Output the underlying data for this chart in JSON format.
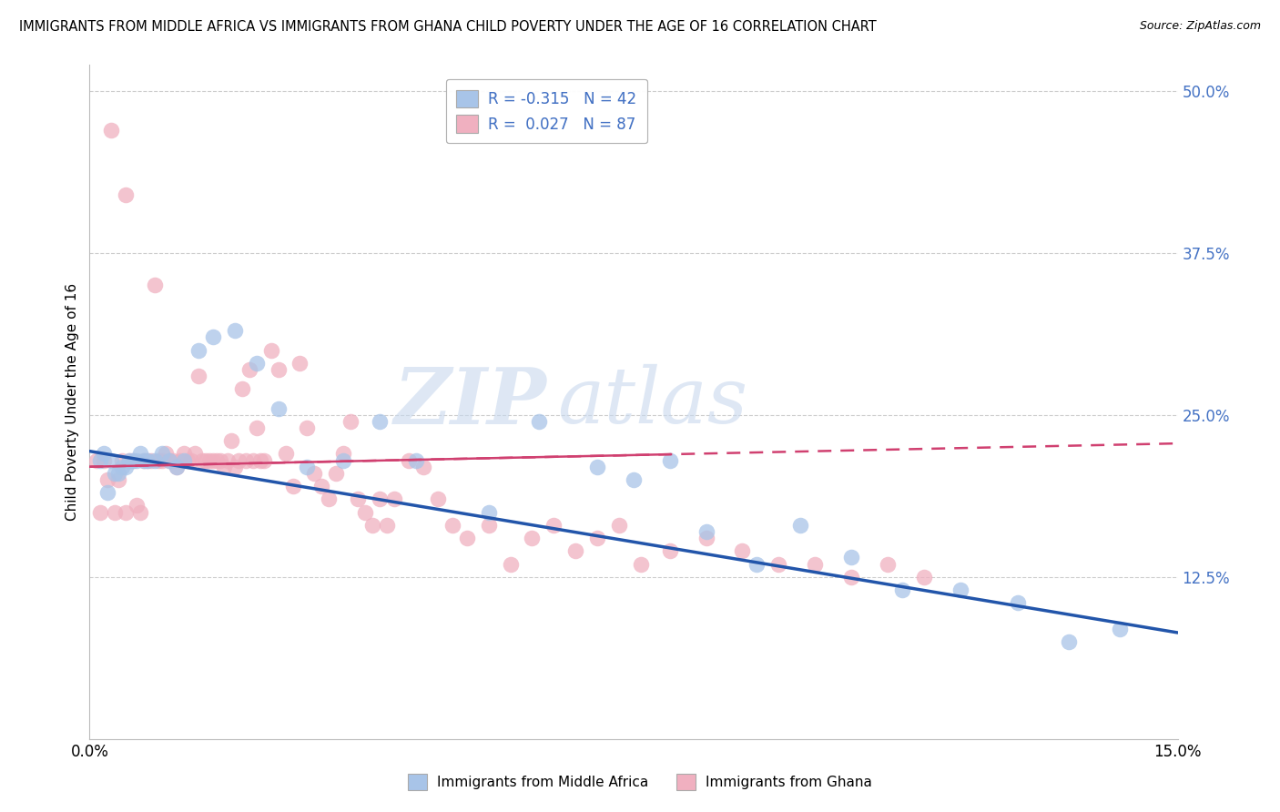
{
  "title": "IMMIGRANTS FROM MIDDLE AFRICA VS IMMIGRANTS FROM GHANA CHILD POVERTY UNDER THE AGE OF 16 CORRELATION CHART",
  "source": "Source: ZipAtlas.com",
  "ylabel": "Child Poverty Under the Age of 16",
  "xlim": [
    0.0,
    15.0
  ],
  "ylim": [
    0.0,
    0.52
  ],
  "watermark_ZIP": "ZIP",
  "watermark_atlas": "atlas",
  "color_blue": "#a8c4e8",
  "color_pink": "#f0b0c0",
  "trendline_blue": "#2255aa",
  "trendline_pink": "#d04070",
  "label_blue": "Immigrants from Middle Africa",
  "label_pink": "Immigrants from Ghana",
  "legend_line1": "R = -0.315   N = 42",
  "legend_line2": "R =  0.027   N = 87",
  "blue_x": [
    0.15,
    0.2,
    0.25,
    0.3,
    0.35,
    0.4,
    0.45,
    0.5,
    0.55,
    0.6,
    0.65,
    0.7,
    0.75,
    0.8,
    0.9,
    1.0,
    1.1,
    1.2,
    1.3,
    1.5,
    1.7,
    2.0,
    2.3,
    2.6,
    3.0,
    3.5,
    4.0,
    4.5,
    5.5,
    6.2,
    7.0,
    7.5,
    8.0,
    8.5,
    9.2,
    9.8,
    10.5,
    11.2,
    12.0,
    12.8,
    13.5,
    14.2
  ],
  "blue_y": [
    0.215,
    0.22,
    0.19,
    0.215,
    0.205,
    0.205,
    0.21,
    0.21,
    0.215,
    0.215,
    0.215,
    0.22,
    0.215,
    0.215,
    0.215,
    0.22,
    0.215,
    0.21,
    0.215,
    0.3,
    0.31,
    0.315,
    0.29,
    0.255,
    0.21,
    0.215,
    0.245,
    0.215,
    0.175,
    0.245,
    0.21,
    0.2,
    0.215,
    0.16,
    0.135,
    0.165,
    0.14,
    0.115,
    0.115,
    0.105,
    0.075,
    0.085
  ],
  "pink_x": [
    0.1,
    0.15,
    0.2,
    0.25,
    0.3,
    0.35,
    0.4,
    0.45,
    0.5,
    0.5,
    0.55,
    0.6,
    0.65,
    0.7,
    0.75,
    0.8,
    0.85,
    0.9,
    0.95,
    1.0,
    1.05,
    1.1,
    1.15,
    1.2,
    1.25,
    1.3,
    1.35,
    1.4,
    1.45,
    1.5,
    1.55,
    1.6,
    1.65,
    1.7,
    1.75,
    1.8,
    1.85,
    1.9,
    1.95,
    2.0,
    2.05,
    2.1,
    2.15,
    2.2,
    2.25,
    2.3,
    2.35,
    2.4,
    2.5,
    2.6,
    2.7,
    2.8,
    2.9,
    3.0,
    3.1,
    3.2,
    3.3,
    3.4,
    3.5,
    3.6,
    3.7,
    3.8,
    3.9,
    4.0,
    4.1,
    4.2,
    4.4,
    4.6,
    4.8,
    5.0,
    5.2,
    5.5,
    5.8,
    6.1,
    6.4,
    6.7,
    7.0,
    7.3,
    7.6,
    8.0,
    8.5,
    9.0,
    9.5,
    10.0,
    10.5,
    11.0,
    11.5
  ],
  "pink_y": [
    0.215,
    0.175,
    0.215,
    0.2,
    0.47,
    0.175,
    0.2,
    0.215,
    0.42,
    0.175,
    0.215,
    0.215,
    0.18,
    0.175,
    0.215,
    0.215,
    0.215,
    0.35,
    0.215,
    0.215,
    0.22,
    0.215,
    0.215,
    0.21,
    0.215,
    0.22,
    0.215,
    0.215,
    0.22,
    0.28,
    0.215,
    0.215,
    0.215,
    0.215,
    0.215,
    0.215,
    0.21,
    0.215,
    0.23,
    0.21,
    0.215,
    0.27,
    0.215,
    0.285,
    0.215,
    0.24,
    0.215,
    0.215,
    0.3,
    0.285,
    0.22,
    0.195,
    0.29,
    0.24,
    0.205,
    0.195,
    0.185,
    0.205,
    0.22,
    0.245,
    0.185,
    0.175,
    0.165,
    0.185,
    0.165,
    0.185,
    0.215,
    0.21,
    0.185,
    0.165,
    0.155,
    0.165,
    0.135,
    0.155,
    0.165,
    0.145,
    0.155,
    0.165,
    0.135,
    0.145,
    0.155,
    0.145,
    0.135,
    0.135,
    0.125,
    0.135,
    0.125
  ],
  "blue_trend_x0": 0.0,
  "blue_trend_y0": 0.222,
  "blue_trend_x1": 15.0,
  "blue_trend_y1": 0.082,
  "pink_trend_x0": 0.0,
  "pink_trend_y0": 0.21,
  "pink_trend_x1": 15.0,
  "pink_trend_y1": 0.228
}
